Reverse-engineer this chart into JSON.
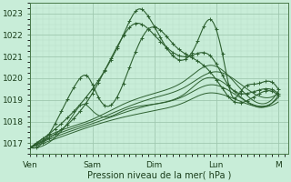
{
  "title": "",
  "xlabel": "Pression niveau de la mer( hPa )",
  "ylabel": "",
  "bg_color": "#c8edd8",
  "plot_bg_color": "#c8edd8",
  "grid_major_color": "#a0c8b0",
  "grid_minor_color": "#b8dcc8",
  "line_color": "#2d6030",
  "ylim": [
    1016.5,
    1023.5
  ],
  "yticks": [
    1017,
    1018,
    1019,
    1020,
    1021,
    1022,
    1023
  ],
  "xtick_labels": [
    "Ven",
    "Sam",
    "Dim",
    "Lun",
    "M"
  ],
  "xtick_positions": [
    0,
    60,
    120,
    180,
    240
  ],
  "xlim": [
    0,
    250
  ]
}
